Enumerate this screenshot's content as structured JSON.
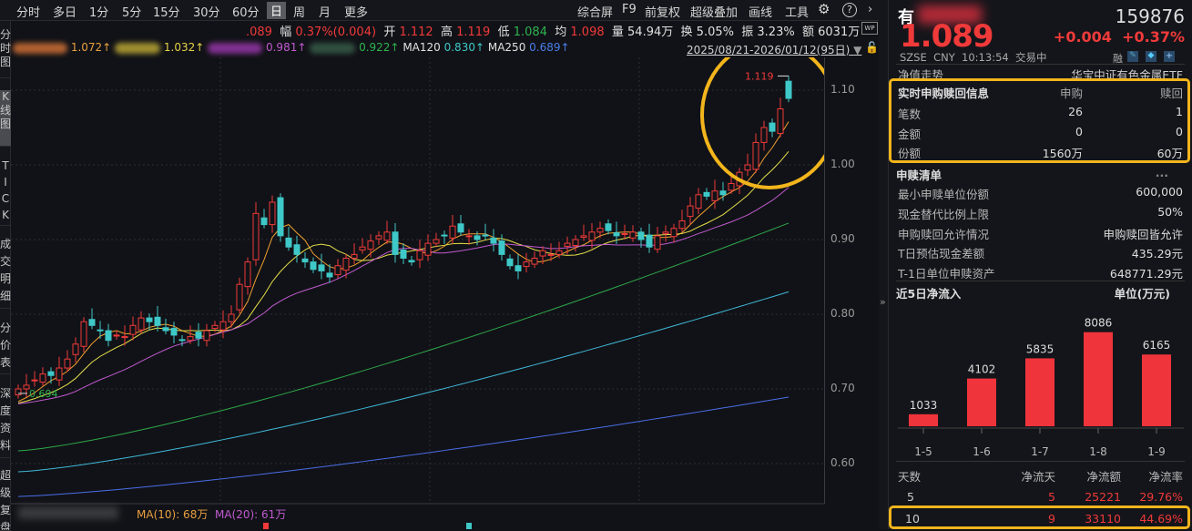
{
  "toolbar": {
    "periods": [
      "分时",
      "多日",
      "1分",
      "5分",
      "15分",
      "30分",
      "60分",
      "日",
      "周",
      "月",
      "更多"
    ],
    "active": "日",
    "right": [
      "综合屏",
      "F9",
      "前复权",
      "超级叠加",
      "画线",
      "工具"
    ]
  },
  "sidetabs": [
    "分时图",
    "K线图",
    "TICK",
    "成交明细",
    "分价表",
    "深度资料",
    "超级复盘"
  ],
  "info": {
    "price": ".089",
    "fu_label": "幅",
    "fu": "0.37%(0.004)",
    "open_label": "开",
    "open": "1.112",
    "high_label": "高",
    "high": "1.119",
    "low_label": "低",
    "low": "1.084",
    "avg_label": "均",
    "avg": "1.098",
    "vol_label": "量",
    "vol": "54.94万",
    "turn_label": "换",
    "turn": "5.05%",
    "amp_label": "振",
    "amp": "3.23%",
    "amt_label": "额",
    "amt": "6031万"
  },
  "ma": {
    "ma1": "1.072↑",
    "ma2": "1.032↑",
    "ma3": "0.981↑",
    "ma4": "0.922↑",
    "ma120_label": "MA120",
    "ma120": "0.830↑",
    "ma250_label": "MA250",
    "ma250": "0.689↑"
  },
  "range": "2025/08/21-2026/01/12(95日)",
  "volume": {
    "ma10": "MA(10): 68万",
    "ma20": "MA(20): 61万"
  },
  "chart_data": {
    "type": "candlestick",
    "yticks": [
      "1.10",
      "1.00",
      "0.90",
      "0.80",
      "0.70",
      "0.60"
    ],
    "ylim": [
      0.545,
      1.16
    ],
    "closes": [
      0.7,
      0.705,
      0.712,
      0.72,
      0.718,
      0.728,
      0.74,
      0.76,
      0.79,
      0.785,
      0.778,
      0.765,
      0.772,
      0.77,
      0.785,
      0.795,
      0.79,
      0.785,
      0.778,
      0.772,
      0.765,
      0.77,
      0.768,
      0.778,
      0.785,
      0.79,
      0.8,
      0.84,
      0.87,
      0.935,
      0.92,
      0.95,
      0.905,
      0.89,
      0.88,
      0.87,
      0.86,
      0.858,
      0.85,
      0.865,
      0.875,
      0.88,
      0.89,
      0.898,
      0.905,
      0.91,
      0.88,
      0.875,
      0.87,
      0.885,
      0.895,
      0.9,
      0.905,
      0.918,
      0.91,
      0.905,
      0.9,
      0.905,
      0.895,
      0.88,
      0.865,
      0.858,
      0.87,
      0.875,
      0.885,
      0.88,
      0.885,
      0.895,
      0.9,
      0.905,
      0.91,
      0.915,
      0.912,
      0.905,
      0.908,
      0.91,
      0.9,
      0.89,
      0.905,
      0.91,
      0.915,
      0.925,
      0.945,
      0.96,
      0.958,
      0.965,
      0.96,
      0.975,
      0.99,
      1.0,
      1.03,
      1.05,
      1.045,
      1.075,
      1.089
    ],
    "last_candle": {
      "open": 1.112,
      "high": 1.119,
      "low": 1.084,
      "close": 1.089
    },
    "max_label": "1.119",
    "min_label": "0.694",
    "ma60_range": [
      0.617,
      0.922
    ],
    "ma120_range": [
      0.589,
      0.83
    ],
    "ma250_range": [
      0.556,
      0.689
    ],
    "colors": {
      "up": "#f03a3a",
      "down": "#3fc8c8",
      "ma5": "#f0a030",
      "ma10": "#e6e04a",
      "ma20": "#c05ad0",
      "ma60": "#2ea84a",
      "ma120": "#3fb8d8",
      "ma250": "#4a6ee8"
    }
  },
  "panel": {
    "name": "有",
    "code": "159876",
    "price": "1.089",
    "chg": "+0.004",
    "pct": "+0.37%",
    "market": "SZSE",
    "currency": "CNY",
    "time": "10:13:54",
    "status": "交易中",
    "rong": "融",
    "nav_label": "净值走势",
    "fund_name": "华宝中证有色金属ETF",
    "rt": {
      "title": "实时申购赎回信息",
      "sub": "申购",
      "red": "赎回",
      "rows": [
        {
          "k": "笔数",
          "a": "26",
          "b": "1"
        },
        {
          "k": "金额",
          "a": "0",
          "b": "0"
        },
        {
          "k": "份额",
          "a": "1560万",
          "b": "60万"
        }
      ]
    },
    "list": {
      "title": "申赎清单",
      "more": "...",
      "rows": [
        {
          "k": "最小申赎单位份额",
          "v": "600,000"
        },
        {
          "k": "现金替代比例上限",
          "v": "50%"
        },
        {
          "k": "申购赎回允许情况",
          "v": "申购赎回皆允许"
        },
        {
          "k": "T日预估现金差额",
          "v": "435.29元"
        },
        {
          "k": "T-1日单位申赎资产",
          "v": "648771.29元"
        }
      ]
    },
    "flow": {
      "title": "近5日净流入",
      "unit": "单位(万元)",
      "bars": [
        {
          "label": "1-5",
          "value": 1033
        },
        {
          "label": "1-6",
          "value": 4102
        },
        {
          "label": "1-7",
          "value": 5835
        },
        {
          "label": "1-8",
          "value": 8086
        },
        {
          "label": "1-9",
          "value": 6165
        }
      ]
    },
    "summary": {
      "headers": [
        "天数",
        "净流天",
        "净流额",
        "净流率"
      ],
      "rows": [
        [
          "5",
          "5",
          "25221",
          "29.76%"
        ],
        [
          "10",
          "9",
          "33110",
          "44.69%"
        ]
      ]
    }
  }
}
